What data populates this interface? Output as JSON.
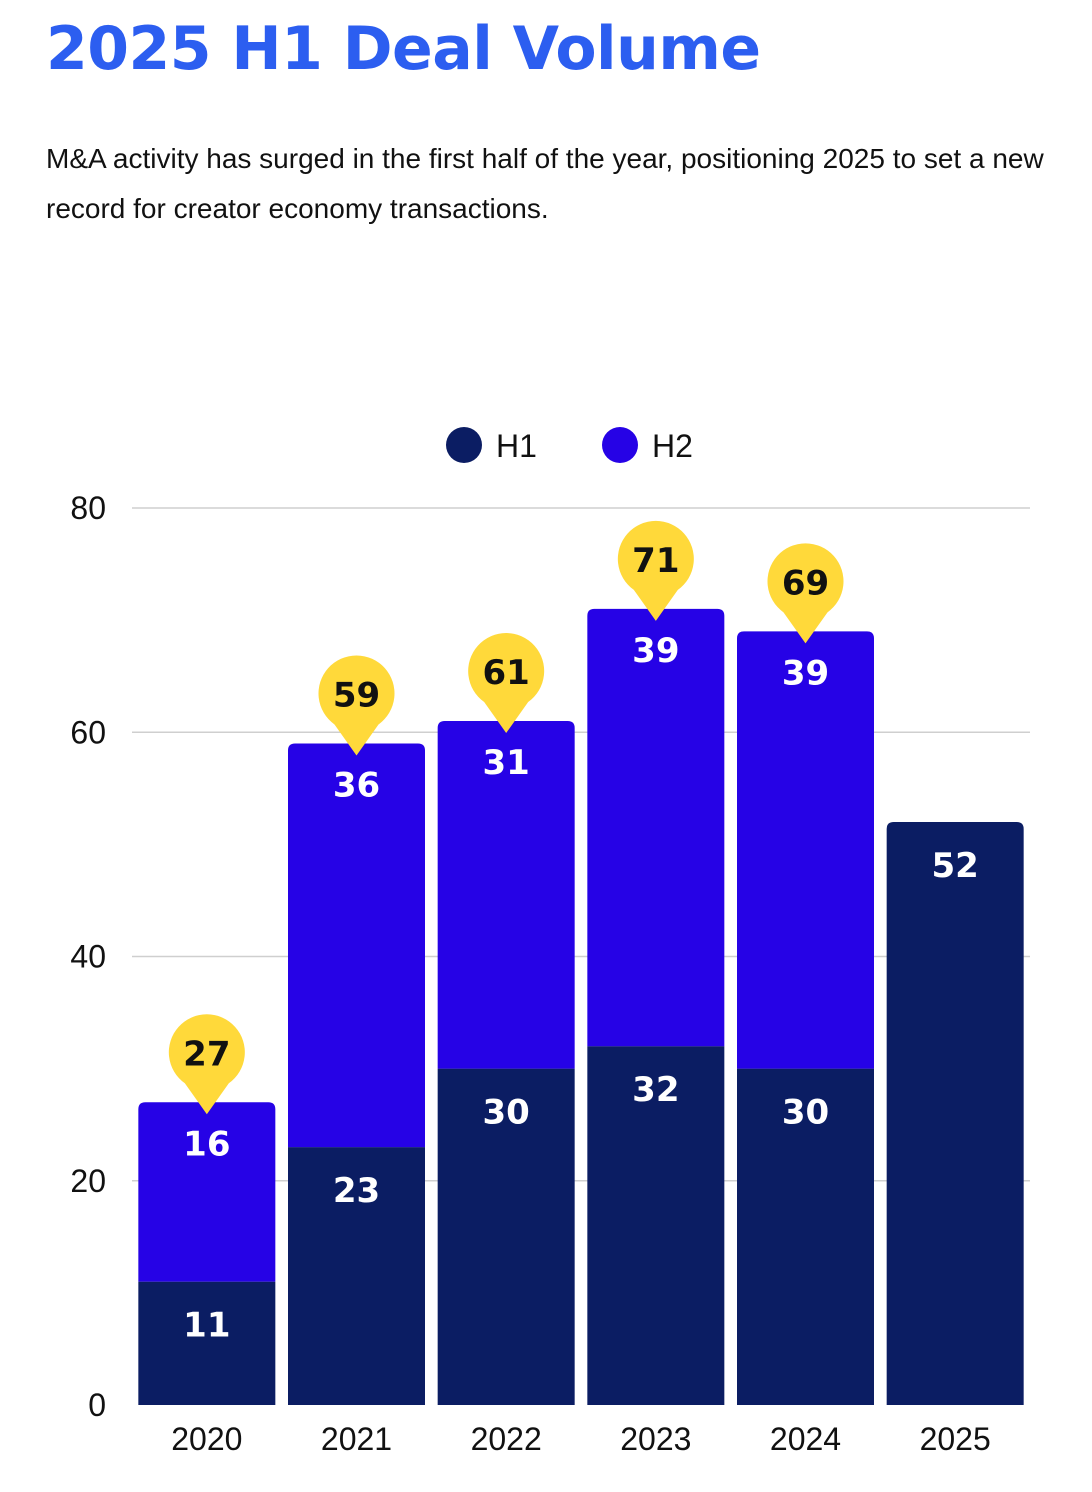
{
  "header": {
    "title": "2025 H1 Deal Volume",
    "subtitle": "M&A activity has surged in the first half of the year, positioning 2025 to set a new record for creator economy transactions."
  },
  "colors": {
    "title": "#2c5ef0",
    "h1": "#0b1d63",
    "h2": "#2602e6",
    "marker": "#ffd93a",
    "grid": "#cfcfcf"
  },
  "chart_data": {
    "type": "bar",
    "stacked": true,
    "categories": [
      "2020",
      "2021",
      "2022",
      "2023",
      "2024",
      "2025"
    ],
    "series": [
      {
        "name": "H1",
        "values": [
          11,
          23,
          30,
          32,
          30,
          52
        ]
      },
      {
        "name": "H2",
        "values": [
          16,
          36,
          31,
          39,
          39,
          null
        ]
      }
    ],
    "totals": [
      27,
      59,
      61,
      71,
      69,
      null
    ],
    "yticks": [
      0,
      20,
      40,
      60,
      80
    ],
    "ylim": [
      0,
      80
    ],
    "grid": true,
    "legend_position": "top-center",
    "xlabel": "",
    "ylabel": ""
  }
}
